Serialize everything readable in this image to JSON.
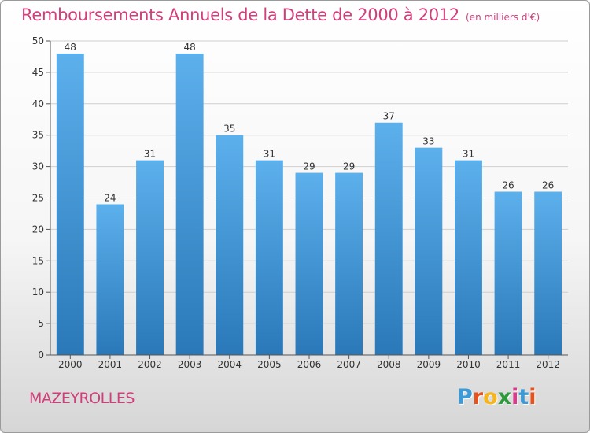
{
  "title": "Remboursements Annuels de la Dette de 2000 à 2012",
  "unit": "(en milliers d'€)",
  "commune": "MAZEYROLLES",
  "logo": {
    "letters": [
      "P",
      "r",
      "o",
      "x",
      "i",
      "t",
      "i"
    ],
    "colors": [
      "#3c9ad6",
      "#e8521c",
      "#f4b51f",
      "#2e9b3a",
      "#d93a8b",
      "#3c9ad6",
      "#e8521c"
    ]
  },
  "chart_data": {
    "type": "bar",
    "categories": [
      "2000",
      "2001",
      "2002",
      "2003",
      "2004",
      "2005",
      "2006",
      "2007",
      "2008",
      "2009",
      "2010",
      "2011",
      "2012"
    ],
    "values": [
      48,
      24,
      31,
      48,
      35,
      31,
      29,
      29,
      37,
      33,
      31,
      26,
      26
    ],
    "ylim": [
      0,
      50
    ],
    "yticks": [
      0,
      5,
      10,
      15,
      20,
      25,
      30,
      35,
      40,
      45,
      50
    ],
    "grid": true,
    "bar_color_top": "#5cb0ec",
    "bar_color_bottom": "#2a78b8"
  }
}
